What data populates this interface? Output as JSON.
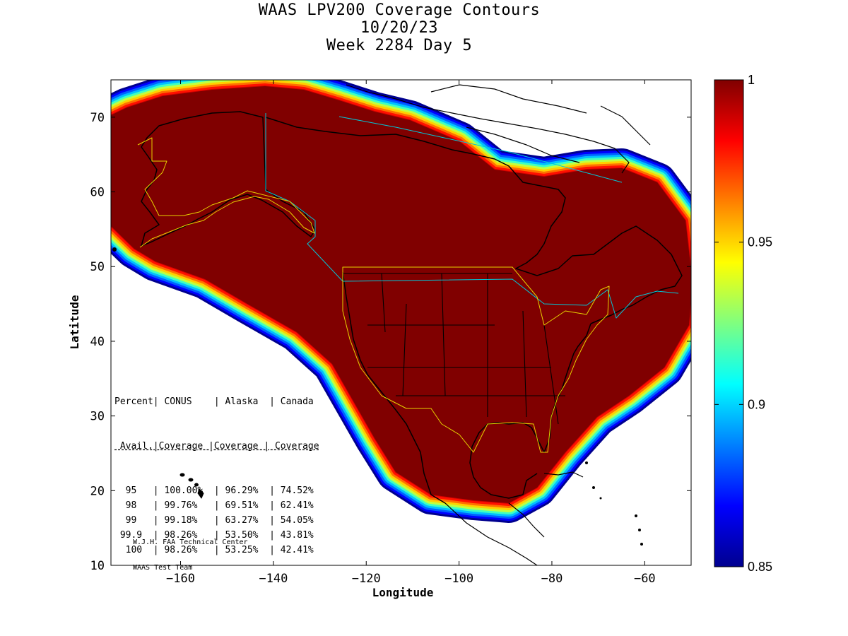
{
  "title": {
    "line1": "WAAS LPV200 Coverage Contours",
    "line2": "10/20/23",
    "line3": "Week 2284 Day 5"
  },
  "axes": {
    "xlabel": "Longitude",
    "ylabel": "Latitude",
    "xlim": [
      -175,
      -50
    ],
    "ylim": [
      10,
      75
    ],
    "xticks": [
      -160,
      -140,
      -120,
      -100,
      -80,
      -60
    ],
    "yticks": [
      10,
      20,
      30,
      40,
      50,
      60,
      70
    ]
  },
  "colorbar": {
    "min": 0.85,
    "max": 1,
    "ticks": [
      "1",
      "0.95",
      "0.9",
      "0.85"
    ],
    "colormap": "jet"
  },
  "table": {
    "header1": [
      "Percent",
      "CONUS",
      "Alaska",
      "Canada"
    ],
    "header2": [
      "Avail.",
      "Coverage",
      "Coverage",
      "Coverage"
    ],
    "rows": [
      [
        "95",
        "100.00%",
        "96.29%",
        "74.52%"
      ],
      [
        "98",
        "99.76%",
        "69.51%",
        "62.41%"
      ],
      [
        "99",
        "99.18%",
        "63.27%",
        "54.05%"
      ],
      [
        "99.9",
        "98.26%",
        "53.50%",
        "43.81%"
      ],
      [
        "100",
        "98.26%",
        "53.25%",
        "42.41%"
      ]
    ]
  },
  "credit": {
    "line1": "W.J.H. FAA Technical Center",
    "line2": "WAAS Test Team"
  },
  "colors": {
    "background": "#ffffff",
    "coverage_max": "#800000",
    "coverage_min": "#00008f",
    "conus_boundary": "#e6d200",
    "canada_boundary": "#00c8d8",
    "coastline": "#000000"
  }
}
